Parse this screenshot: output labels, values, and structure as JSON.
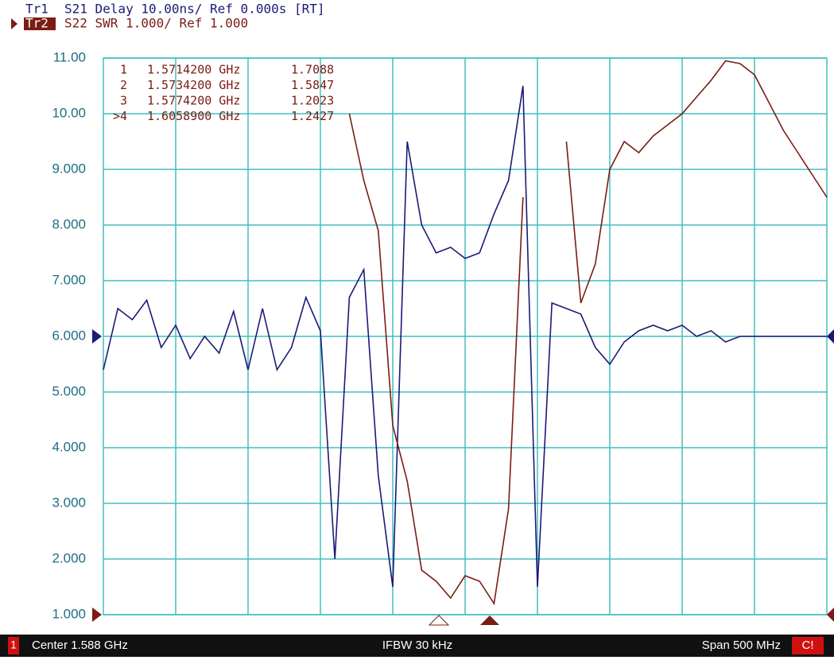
{
  "chart_data": {
    "type": "line",
    "series": [
      {
        "id": "Tr1",
        "name": "S21 Delay 10.00ns/ Ref 0.000s [RT]",
        "color": "#1a1a78",
        "axis": "y2",
        "values": [
          -6,
          5,
          3,
          6.5,
          -2,
          2,
          -4,
          0,
          -3,
          4.5,
          -6,
          5,
          -6,
          -2,
          7,
          1,
          -40,
          7,
          12,
          -25,
          -45,
          35,
          20,
          15,
          16,
          14,
          15,
          22,
          28,
          45,
          -45,
          6,
          5,
          4,
          -2,
          -5,
          -1,
          1,
          2,
          1,
          2,
          0,
          1,
          -1,
          0,
          0,
          0,
          0,
          0,
          0,
          0
        ]
      },
      {
        "id": "Tr2",
        "name": "S22 SWR 1.000/ Ref 1.000",
        "color": "#7a1c14",
        "values": [
          null,
          null,
          null,
          null,
          null,
          null,
          null,
          null,
          null,
          null,
          null,
          null,
          null,
          null,
          null,
          null,
          null,
          10.0,
          8.8,
          7.9,
          4.4,
          3.4,
          1.8,
          1.6,
          1.3,
          1.7,
          1.6,
          1.2,
          2.9,
          8.5,
          null,
          null,
          9.5,
          6.6,
          7.3,
          9.0,
          9.5,
          9.3,
          9.6,
          9.8,
          10.0,
          10.3,
          10.6,
          10.95,
          10.9,
          10.7,
          10.2,
          9.7,
          9.3,
          8.9,
          8.5
        ]
      }
    ],
    "x": [
      1.338,
      1.348,
      1.358,
      1.368,
      1.378,
      1.388,
      1.398,
      1.408,
      1.418,
      1.428,
      1.438,
      1.448,
      1.458,
      1.468,
      1.478,
      1.488,
      1.498,
      1.508,
      1.518,
      1.528,
      1.538,
      1.548,
      1.558,
      1.568,
      1.578,
      1.588,
      1.598,
      1.608,
      1.618,
      1.628,
      1.638,
      1.648,
      1.658,
      1.668,
      1.678,
      1.688,
      1.698,
      1.708,
      1.718,
      1.728,
      1.738,
      1.748,
      1.758,
      1.768,
      1.778,
      1.788,
      1.798,
      1.808,
      1.818,
      1.828,
      1.838
    ],
    "xlim": [
      1.338,
      1.838
    ],
    "ylim": [
      1,
      11
    ],
    "y2lim": [
      -50,
      50
    ],
    "yticks": [
      {
        "value": 11,
        "label": "11.00"
      },
      {
        "value": 10,
        "label": "10.00"
      },
      {
        "value": 9,
        "label": "9.000"
      },
      {
        "value": 8,
        "label": "8.000"
      },
      {
        "value": 7,
        "label": "7.000"
      },
      {
        "value": 6,
        "label": "6.000"
      },
      {
        "value": 5,
        "label": "5.000"
      },
      {
        "value": 4,
        "label": "4.000"
      },
      {
        "value": 3,
        "label": "3.000"
      },
      {
        "value": 2,
        "label": "2.000"
      },
      {
        "value": 1,
        "label": "1.000"
      }
    ],
    "grid": true,
    "marker_table": [
      {
        "id": "1",
        "freq": "1.5714200 GHz",
        "value": "1.7088"
      },
      {
        "id": "2",
        "freq": "1.5734200 GHz",
        "value": "1.5847"
      },
      {
        "id": "3",
        "freq": "1.5774200 GHz",
        "value": "1.2023"
      },
      {
        "id": ">4",
        "freq": "1.6058900 GHz",
        "value": "1.2427"
      }
    ]
  },
  "status": {
    "channel": "1",
    "center": "Center 1.588 GHz",
    "ifbw": "IFBW 30 kHz",
    "span": "Span 500 MHz",
    "flag": "C!"
  }
}
